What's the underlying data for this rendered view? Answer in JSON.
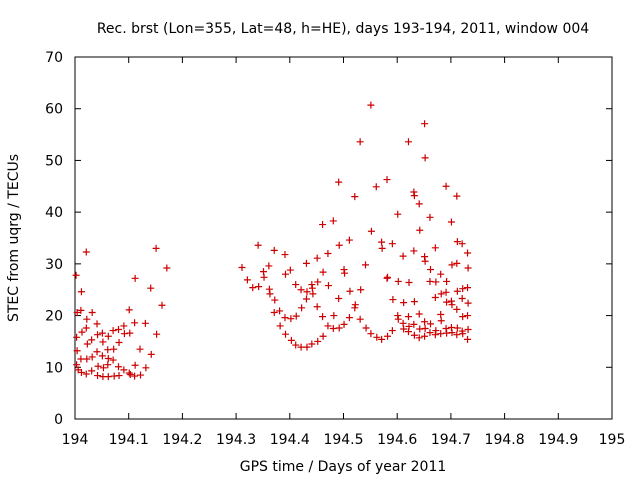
{
  "chart_data": {
    "type": "scatter",
    "title": "Rec. brst (Lon=355, Lat=48, h=HE), days 193-194, 2011, window 004",
    "xlabel": "GPS time / Days of year 2011",
    "ylabel": "STEC from uqrg / TECUs",
    "xlim": [
      194,
      195
    ],
    "ylim": [
      0,
      70
    ],
    "xticks": [
      "194",
      "194.1",
      "194.2",
      "194.3",
      "194.4",
      "194.5",
      "194.6",
      "194.7",
      "194.8",
      "194.9",
      "195"
    ],
    "yticks": [
      "0",
      "10",
      "20",
      "30",
      "40",
      "50",
      "60",
      "70"
    ],
    "grid": false,
    "marker": "plus",
    "color": "#cc0000",
    "series": [
      {
        "name": "STEC",
        "points": [
          [
            194.002,
            27.8
          ],
          [
            194.004,
            20.6
          ],
          [
            194.003,
            15.8
          ],
          [
            194.004,
            13.2
          ],
          [
            194.003,
            10.5
          ],
          [
            194.006,
            9.5
          ],
          [
            194.012,
            24.6
          ],
          [
            194.011,
            21.0
          ],
          [
            194.013,
            16.8
          ],
          [
            194.011,
            11.6
          ],
          [
            194.012,
            9.0
          ],
          [
            194.021,
            32.3
          ],
          [
            194.022,
            19.3
          ],
          [
            194.021,
            17.6
          ],
          [
            194.023,
            14.5
          ],
          [
            194.022,
            11.6
          ],
          [
            194.021,
            8.7
          ],
          [
            194.032,
            20.6
          ],
          [
            194.031,
            15.3
          ],
          [
            194.032,
            12.0
          ],
          [
            194.031,
            9.3
          ],
          [
            194.041,
            18.4
          ],
          [
            194.042,
            16.3
          ],
          [
            194.041,
            13.0
          ],
          [
            194.043,
            10.2
          ],
          [
            194.042,
            8.4
          ],
          [
            194.051,
            16.6
          ],
          [
            194.052,
            14.9
          ],
          [
            194.051,
            12.2
          ],
          [
            194.053,
            9.9
          ],
          [
            194.052,
            8.2
          ],
          [
            194.062,
            16.0
          ],
          [
            194.061,
            13.4
          ],
          [
            194.062,
            11.7
          ],
          [
            194.061,
            10.5
          ],
          [
            194.062,
            8.2
          ],
          [
            194.071,
            17.1
          ],
          [
            194.072,
            13.5
          ],
          [
            194.071,
            11.4
          ],
          [
            194.073,
            8.3
          ],
          [
            194.081,
            17.3
          ],
          [
            194.082,
            14.8
          ],
          [
            194.081,
            10.1
          ],
          [
            194.082,
            8.4
          ],
          [
            194.091,
            18.0
          ],
          [
            194.092,
            16.5
          ],
          [
            194.091,
            9.5
          ],
          [
            194.101,
            21.1
          ],
          [
            194.102,
            16.6
          ],
          [
            194.101,
            8.9
          ],
          [
            194.103,
            8.6
          ],
          [
            194.112,
            27.2
          ],
          [
            194.111,
            18.6
          ],
          [
            194.112,
            10.4
          ],
          [
            194.111,
            8.3
          ],
          [
            194.121,
            13.5
          ],
          [
            194.122,
            8.5
          ],
          [
            194.131,
            18.5
          ],
          [
            194.132,
            9.9
          ],
          [
            194.141,
            25.3
          ],
          [
            194.142,
            12.5
          ],
          [
            194.151,
            33.0
          ],
          [
            194.152,
            16.4
          ],
          [
            194.162,
            22.0
          ],
          [
            194.171,
            29.2
          ],
          [
            194.311,
            29.3
          ],
          [
            194.321,
            26.9
          ],
          [
            194.331,
            25.4
          ],
          [
            194.341,
            33.6
          ],
          [
            194.342,
            25.6
          ],
          [
            194.351,
            28.5
          ],
          [
            194.352,
            27.4
          ],
          [
            194.361,
            29.6
          ],
          [
            194.362,
            25.1
          ],
          [
            194.363,
            24.2
          ],
          [
            194.371,
            32.6
          ],
          [
            194.372,
            23.0
          ],
          [
            194.371,
            20.6
          ],
          [
            194.381,
            20.9
          ],
          [
            194.382,
            18.0
          ],
          [
            194.391,
            31.8
          ],
          [
            194.392,
            28.0
          ],
          [
            194.391,
            19.6
          ],
          [
            194.392,
            16.4
          ],
          [
            194.401,
            28.8
          ],
          [
            194.402,
            19.4
          ],
          [
            194.403,
            15.2
          ],
          [
            194.411,
            26.0
          ],
          [
            194.412,
            19.9
          ],
          [
            194.411,
            14.3
          ],
          [
            194.421,
            25.0
          ],
          [
            194.422,
            21.5
          ],
          [
            194.421,
            13.9
          ],
          [
            194.431,
            30.1
          ],
          [
            194.432,
            24.6
          ],
          [
            194.431,
            23.2
          ],
          [
            194.432,
            13.9
          ],
          [
            194.441,
            26.0
          ],
          [
            194.442,
            25.3
          ],
          [
            194.443,
            24.2
          ],
          [
            194.441,
            14.5
          ],
          [
            194.451,
            31.1
          ],
          [
            194.452,
            26.5
          ],
          [
            194.451,
            21.7
          ],
          [
            194.452,
            15.0
          ],
          [
            194.461,
            37.6
          ],
          [
            194.462,
            28.4
          ],
          [
            194.461,
            19.8
          ],
          [
            194.462,
            16.0
          ],
          [
            194.471,
            32.0
          ],
          [
            194.472,
            25.8
          ],
          [
            194.471,
            18.0
          ],
          [
            194.481,
            38.3
          ],
          [
            194.482,
            20.0
          ],
          [
            194.481,
            17.5
          ],
          [
            194.491,
            45.8
          ],
          [
            194.492,
            33.6
          ],
          [
            194.491,
            23.3
          ],
          [
            194.492,
            17.6
          ],
          [
            194.501,
            28.9
          ],
          [
            194.502,
            28.2
          ],
          [
            194.501,
            18.3
          ],
          [
            194.511,
            34.6
          ],
          [
            194.512,
            24.7
          ],
          [
            194.511,
            19.6
          ],
          [
            194.521,
            43.0
          ],
          [
            194.522,
            22.1
          ],
          [
            194.521,
            21.5
          ],
          [
            194.531,
            53.6
          ],
          [
            194.532,
            25.0
          ],
          [
            194.531,
            19.3
          ],
          [
            194.541,
            29.8
          ],
          [
            194.542,
            17.6
          ],
          [
            194.551,
            60.7
          ],
          [
            194.552,
            36.3
          ],
          [
            194.551,
            16.5
          ],
          [
            194.561,
            44.9
          ],
          [
            194.562,
            15.8
          ],
          [
            194.571,
            34.2
          ],
          [
            194.572,
            33.0
          ],
          [
            194.571,
            15.4
          ],
          [
            194.581,
            46.3
          ],
          [
            194.582,
            27.4
          ],
          [
            194.581,
            27.2
          ],
          [
            194.582,
            16.0
          ],
          [
            194.591,
            33.9
          ],
          [
            194.592,
            23.1
          ],
          [
            194.591,
            17.1
          ],
          [
            194.601,
            39.6
          ],
          [
            194.602,
            26.6
          ],
          [
            194.601,
            20.0
          ],
          [
            194.602,
            19.3
          ],
          [
            194.611,
            31.5
          ],
          [
            194.612,
            22.5
          ],
          [
            194.611,
            18.5
          ],
          [
            194.612,
            17.4
          ],
          [
            194.621,
            53.6
          ],
          [
            194.622,
            26.4
          ],
          [
            194.621,
            19.8
          ],
          [
            194.622,
            17.9
          ],
          [
            194.621,
            16.9
          ],
          [
            194.631,
            43.9
          ],
          [
            194.632,
            43.2
          ],
          [
            194.631,
            32.5
          ],
          [
            194.632,
            22.7
          ],
          [
            194.631,
            18.3
          ],
          [
            194.632,
            16.2
          ],
          [
            194.641,
            41.6
          ],
          [
            194.642,
            36.5
          ],
          [
            194.641,
            20.3
          ],
          [
            194.642,
            17.4
          ],
          [
            194.641,
            15.7
          ],
          [
            194.651,
            57.1
          ],
          [
            194.652,
            50.5
          ],
          [
            194.651,
            31.4
          ],
          [
            194.652,
            30.5
          ],
          [
            194.651,
            18.8
          ],
          [
            194.652,
            17.5
          ],
          [
            194.651,
            16.0
          ],
          [
            194.661,
            39.0
          ],
          [
            194.662,
            28.9
          ],
          [
            194.661,
            26.6
          ],
          [
            194.662,
            18.4
          ],
          [
            194.661,
            16.7
          ],
          [
            194.671,
            33.1
          ],
          [
            194.672,
            26.5
          ],
          [
            194.671,
            23.5
          ],
          [
            194.672,
            17.1
          ],
          [
            194.671,
            16.3
          ],
          [
            194.681,
            28.0
          ],
          [
            194.682,
            24.2
          ],
          [
            194.681,
            20.2
          ],
          [
            194.682,
            19.0
          ],
          [
            194.681,
            16.5
          ],
          [
            194.691,
            45.0
          ],
          [
            194.692,
            26.6
          ],
          [
            194.691,
            24.5
          ],
          [
            194.692,
            22.6
          ],
          [
            194.691,
            17.5
          ],
          [
            194.692,
            16.6
          ],
          [
            194.701,
            38.1
          ],
          [
            194.702,
            29.8
          ],
          [
            194.701,
            22.8
          ],
          [
            194.702,
            22.1
          ],
          [
            194.701,
            17.7
          ],
          [
            194.702,
            16.7
          ],
          [
            194.711,
            43.1
          ],
          [
            194.712,
            34.3
          ],
          [
            194.711,
            30.1
          ],
          [
            194.712,
            24.7
          ],
          [
            194.711,
            21.2
          ],
          [
            194.712,
            17.6
          ],
          [
            194.711,
            16.3
          ],
          [
            194.721,
            33.9
          ],
          [
            194.722,
            25.2
          ],
          [
            194.721,
            23.3
          ],
          [
            194.722,
            19.8
          ],
          [
            194.721,
            17.0
          ],
          [
            194.722,
            16.5
          ],
          [
            194.731,
            32.1
          ],
          [
            194.732,
            29.2
          ],
          [
            194.731,
            25.4
          ],
          [
            194.732,
            22.4
          ],
          [
            194.731,
            20.0
          ],
          [
            194.732,
            17.3
          ],
          [
            194.731,
            15.4
          ]
        ]
      }
    ]
  }
}
